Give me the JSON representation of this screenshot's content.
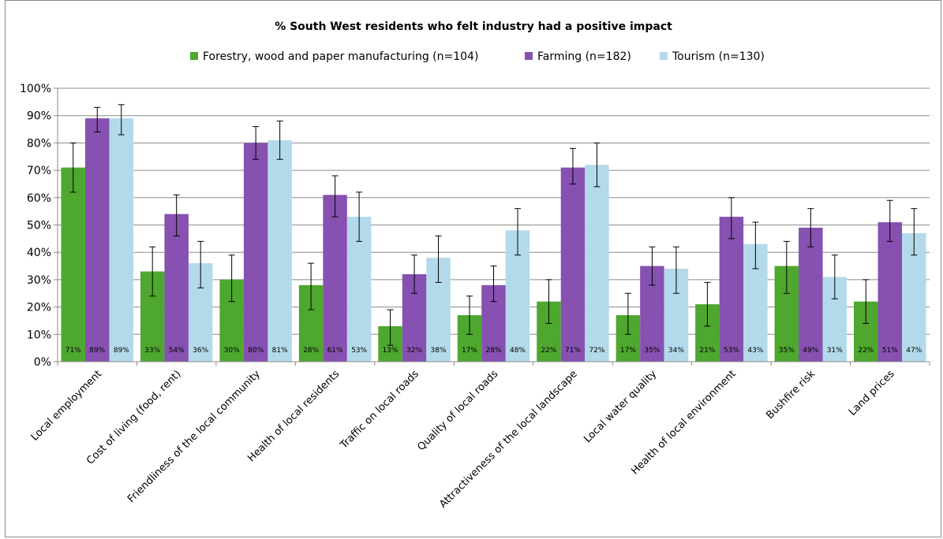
{
  "chart_data": {
    "type": "bar",
    "title": "% South West residents who felt industry had a positive impact",
    "xlabel": "",
    "ylabel": "",
    "ylim": [
      0,
      100
    ],
    "yticks": [
      "0%",
      "10%",
      "20%",
      "30%",
      "40%",
      "50%",
      "60%",
      "70%",
      "80%",
      "90%",
      "100%"
    ],
    "grid": true,
    "legend_position": "top",
    "error_bars": true,
    "categories": [
      "Local employment",
      "Cost of living (food, rent)",
      "Friendliness of the local community",
      "Health of local residents",
      "Traffic on local roads",
      "Quality of local roads",
      "Attractiveness of the local landscape",
      "Local water quality",
      "Health of local environment",
      "Bushfire risk",
      "Land prices"
    ],
    "series": [
      {
        "name": "Forestry, wood and paper manufacturing (n=104)",
        "color": "#4ea72e",
        "values": [
          71,
          33,
          30,
          28,
          13,
          17,
          22,
          17,
          21,
          35,
          22
        ],
        "labels": [
          "71%",
          "33%",
          "30%",
          "28%",
          "13%",
          "17%",
          "22%",
          "17%",
          "21%",
          "35%",
          "22%"
        ],
        "err_low": [
          62,
          24,
          22,
          19,
          6,
          10,
          14,
          10,
          13,
          25,
          14
        ],
        "err_high": [
          80,
          42,
          39,
          36,
          19,
          24,
          30,
          25,
          29,
          44,
          30
        ]
      },
      {
        "name": "Farming (n=182)",
        "color": "#8651b0",
        "values": [
          89,
          54,
          80,
          61,
          32,
          28,
          71,
          35,
          53,
          49,
          51
        ],
        "labels": [
          "89%",
          "54%",
          "80%",
          "61%",
          "32%",
          "28%",
          "71%",
          "35%",
          "53%",
          "49%",
          "51%"
        ],
        "err_low": [
          84,
          46,
          74,
          53,
          25,
          22,
          65,
          28,
          45,
          42,
          44
        ],
        "err_high": [
          93,
          61,
          86,
          68,
          39,
          35,
          78,
          42,
          60,
          56,
          59
        ]
      },
      {
        "name": "Tourism (n=130)",
        "color": "#b3daea",
        "values": [
          89,
          36,
          81,
          53,
          38,
          48,
          72,
          34,
          43,
          31,
          47
        ],
        "labels": [
          "89%",
          "36%",
          "81%",
          "53%",
          "38%",
          "48%",
          "72%",
          "34%",
          "43%",
          "31%",
          "47%"
        ],
        "err_low": [
          83,
          27,
          74,
          44,
          29,
          39,
          64,
          25,
          34,
          23,
          39
        ],
        "err_high": [
          94,
          44,
          88,
          62,
          46,
          56,
          80,
          42,
          51,
          39,
          56
        ]
      }
    ]
  }
}
